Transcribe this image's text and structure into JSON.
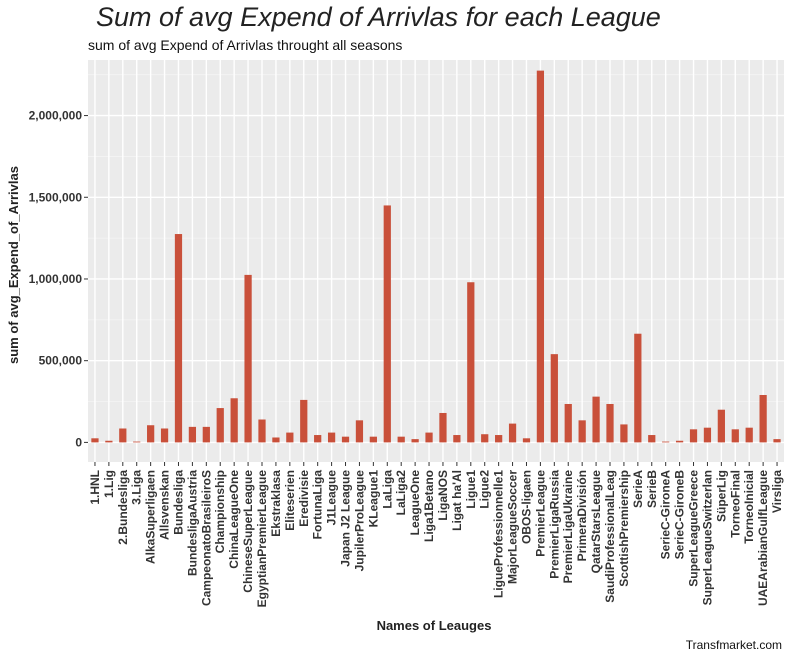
{
  "title": "Sum of avg Expend of Arrivlas for each League",
  "subtitle": "sum of avg Expend of Arrivlas throught all seasons",
  "caption": "Transfmarket.com",
  "colors": {
    "bar": "#c9503a",
    "panel": "#ebebeb",
    "grid_major": "#ffffff",
    "grid_minor": "#f4f4f4"
  },
  "chart_data": {
    "type": "bar",
    "xlabel": "Names of Leauges",
    "ylabel": "sum of avg_Expend_of_Arrivlas",
    "ylim": [
      -120000,
      2340000
    ],
    "yticks": [
      0,
      500000,
      1000000,
      1500000,
      2000000
    ],
    "ytick_labels": [
      "0",
      "500,000",
      "1,000,000",
      "1,500,000",
      "2,000,000"
    ],
    "grid": true,
    "categories": [
      "1.HNL",
      "1.Lig",
      "2.Bundesliga",
      "3.Liga",
      "AlkaSuperligaen",
      "Allsvenskan",
      "Bundesliga",
      "BundesligaAustria",
      "CampeonatoBrasileiroS",
      "Championship",
      "ChinaLeagueOne",
      "ChineseSuperLeague",
      "EgyptianPremierLeague",
      "Ekstraklasa",
      "Eliteserien",
      "Eredivisie",
      "FortunaLiga",
      "J1League",
      "Japan J2 League",
      "JupilerProLeague",
      "KLeague1",
      "LaLiga",
      "LaLiga2",
      "LeagueOne",
      "Liga1Betano",
      "LigaNOS",
      "Ligat ha'Al",
      "Ligue1",
      "Ligue2",
      "LigueProfessionnelle1",
      "MajorLeagueSoccer",
      "OBOS-ligaen",
      "PremierLeague",
      "PremierLigaRussia",
      "PremierLigaUkraine",
      "PrimeraDivisión",
      "QatarStarsLeague",
      "SaudiProfessionalLeag",
      "ScottishPremiership",
      "SerieA",
      "SerieB",
      "SerieC-GironeA",
      "SerieC-GironeB",
      "SuperLeagueGreece",
      "SuperLeagueSwitzerlan",
      "SüperLig",
      "TorneoFinal",
      "TorneoInicial",
      "UAEArabianGulfLeague",
      "Virsliga"
    ],
    "values": [
      25000,
      10000,
      85000,
      5000,
      105000,
      85000,
      1275000,
      95000,
      95000,
      210000,
      270000,
      1025000,
      140000,
      30000,
      60000,
      260000,
      45000,
      60000,
      35000,
      135000,
      35000,
      1450000,
      35000,
      20000,
      60000,
      180000,
      45000,
      980000,
      50000,
      45000,
      115000,
      25000,
      2275000,
      540000,
      235000,
      135000,
      280000,
      235000,
      110000,
      665000,
      45000,
      5000,
      10000,
      80000,
      90000,
      200000,
      80000,
      90000,
      290000,
      20000
    ]
  }
}
